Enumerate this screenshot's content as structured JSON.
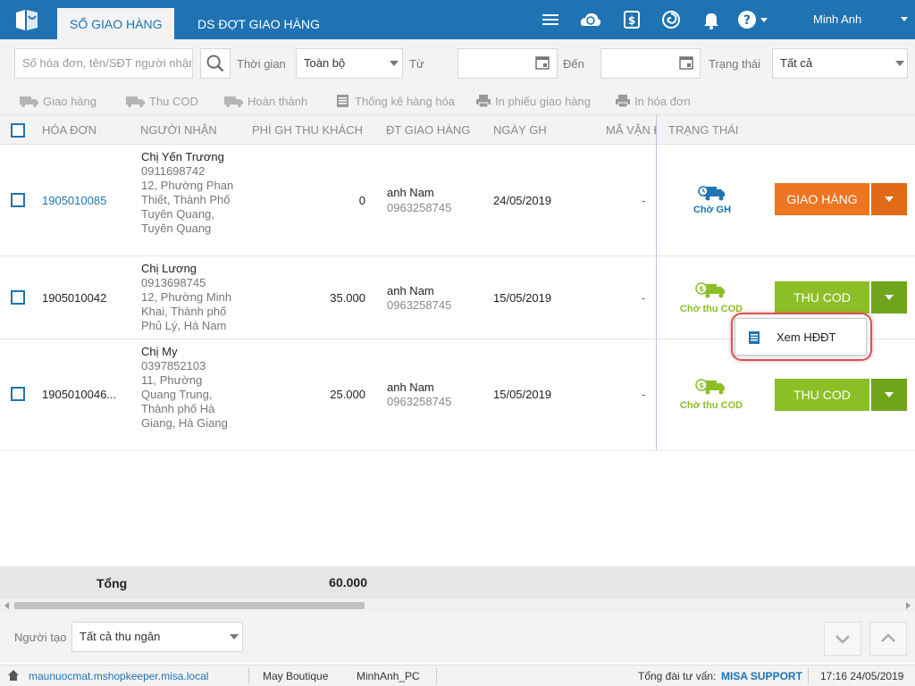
{
  "header": {
    "tabs": [
      {
        "label": "SỔ GIAO HÀNG",
        "active": true
      },
      {
        "label": "DS ĐỢT GIAO HÀNG",
        "active": false
      }
    ],
    "user": "Minh Anh",
    "icons": [
      "menu-icon",
      "cloud-sync-icon",
      "money-icon",
      "spiral-icon",
      "bell-icon",
      "help-icon"
    ]
  },
  "filters": {
    "search_placeholder": "Số hóa đơn, tên/SĐT người nhận",
    "time_label": "Thời gian",
    "time_value": "Toàn bộ",
    "from_label": "Từ",
    "to_label": "Đến",
    "status_label": "Trạng thái",
    "status_value": "Tất cả"
  },
  "toolbar": {
    "deliver": "Giao hàng",
    "collect_cod": "Thu COD",
    "complete": "Hoàn thành",
    "stats": "Thống kê hàng hóa",
    "print_slip": "In phiếu giao hàng",
    "print_invoice": "In hóa đơn"
  },
  "columns": {
    "invoice": "HÓA ĐƠN",
    "recipient": "NGƯỜI NHẬN",
    "fee": "PHÍ GH THU KHÁCH",
    "shipper": "ĐT GIAO HÀNG",
    "date": "NGÀY GH",
    "tracking": "MÃ VẬN ĐƠN",
    "status": "TRẠNG THÁI"
  },
  "rows": [
    {
      "invoice": "1905010085",
      "name": "Chị Yến Trương",
      "phone": "0911698742",
      "address": "12, Phường Phan Thiết, Thành Phố Tuyên Quang, Tuyên Quang",
      "fee": "0",
      "shipper_name": "anh Nam",
      "shipper_phone": "0963258745",
      "date": "24/05/2019",
      "tracking": "-",
      "status": "Chờ GH",
      "action": "GIAO HÀNG"
    },
    {
      "invoice": "1905010042",
      "name": "Chị Lương",
      "phone": "0913698745",
      "address": "12, Phường Minh Khai, Thành phố Phủ Lý, Hà Nam",
      "fee": "35.000",
      "shipper_name": "anh Nam",
      "shipper_phone": "0963258745",
      "date": "15/05/2019",
      "tracking": "-",
      "status": "Chờ thu COD",
      "action": "THU COD"
    },
    {
      "invoice": "1905010046...",
      "name": "Chị My",
      "phone": "0397852103",
      "address": "11, Phường Quang Trung, Thành phố Hà Giang, Hà Giang",
      "fee": "25.000",
      "shipper_name": "anh Nam",
      "shipper_phone": "0963258745",
      "date": "15/05/2019",
      "tracking": "-",
      "status": "Chờ thu COD",
      "action": "THU COD"
    }
  ],
  "popup": {
    "item": "Xem HĐĐT"
  },
  "total": {
    "label": "Tổng",
    "value": "60.000"
  },
  "bottom": {
    "creator_label": "Người tạo",
    "creator_value": "Tất cả thu ngân"
  },
  "statusbar": {
    "domain": "maunuocmat.mshopkeeper.misa.local",
    "store": "May Boutique",
    "pc": "MinhAnh_PC",
    "hotline_label": "Tổng đài tư vấn:",
    "hotline": "MISA SUPPORT",
    "datetime": "17:16 24/05/2019"
  },
  "colors": {
    "brand": "#1f73b3",
    "deliver_button": "#ee7623",
    "cod_button": "#8cbf26",
    "cod_button_dark": "#6fa51b",
    "highlight_ring": "#d9534f"
  }
}
